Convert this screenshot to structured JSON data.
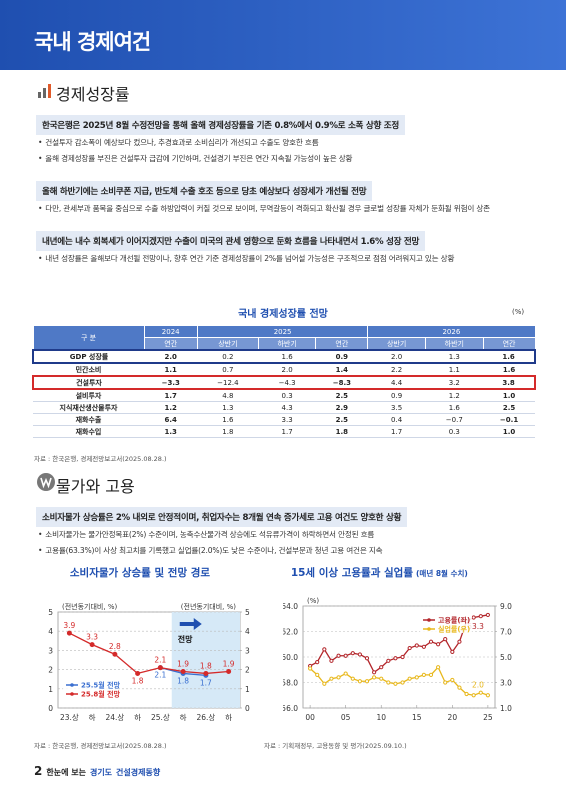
{
  "header": {
    "title": "국내 경제여건"
  },
  "sections": [
    {
      "title": "경제성장률",
      "blocks": [
        {
          "headline": "한국은행은 2025년 8월 수정전망을 통해 올해 경제성장률을 기존 0.8%에서 0.9%로 소폭 상향 조정",
          "bullets": [
            "건설투자 감소폭이 예상보다 컸으나, 추경효과로 소비심리가 개선되고 수출도 양호한 흐름",
            "올해 경제성장률 부진은 건설투자 급감에 기인하며, 건설경기 부진은 연간 지속될 가능성이 높은 상황"
          ]
        },
        {
          "headline": "올해 하반기에는 소비쿠폰 지급, 반도체 수출 호조 등으로 당초 예상보다 성장세가 개선될 전망",
          "bullets": [
            "다만, 관세부과 품목을 중심으로 수출 하방압력이 커질 것으로 보이며, 무역갈등이 격화되고 확산될 경우 글로벌 성장률 자체가 둔화될 위험이 상존"
          ]
        },
        {
          "headline": "내년에는 내수 회복세가 이어지겠지만 수출이 미국의 관세 영향으로 둔화 흐름을 나타내면서 1.6% 성장 전망",
          "bullets": [
            "내년 성장률은 올해보다 개선될 전망이나, 향후 연간 기준 경제성장률이 2%를 넘어설 가능성은 구조적으로 점점 어려워지고 있는 상황"
          ]
        }
      ]
    },
    {
      "title": "물가와 고용",
      "blocks": [
        {
          "headline": "소비자물가 상승률은 2% 내외로 안정적이며, 취업자수는 8개월 연속 증가세로 고용 여건도 양호한 상황",
          "bullets": [
            "소비자물가는 물가안정목표(2%) 수준이며, 농축수산물가격 상승에도 석유류가격이 하락하면서 안정된 흐름",
            "고용률(63.3%)이 사상 최고치를 기록했고 실업률(2.0%)도 낮은 수준이나, 건설부문과 청년 고용 여건은 지속"
          ]
        }
      ]
    }
  ],
  "table": {
    "title": "국내 경제성장률 전망",
    "unit": "(%)",
    "header": [
      "구 분",
      "2024",
      "2025",
      "2026"
    ],
    "subheader": [
      "연간",
      "상반기",
      "하반기",
      "연간",
      "상반기",
      "하반기",
      "연간"
    ],
    "rows": [
      [
        "GDP 성장률",
        "2.0",
        "0.2",
        "1.6",
        "0.9",
        "2.0",
        "1.3",
        "1.6"
      ],
      [
        "민간소비",
        "1.1",
        "0.7",
        "2.0",
        "1.4",
        "2.2",
        "1.1",
        "1.6"
      ],
      [
        "건설투자",
        "−3.3",
        "−12.4",
        "−4.3",
        "−8.3",
        "4.4",
        "3.2",
        "3.8"
      ],
      [
        "설비투자",
        "1.7",
        "4.8",
        "0.3",
        "2.5",
        "0.9",
        "1.2",
        "1.0"
      ],
      [
        "지식재산생산물투자",
        "1.2",
        "1.3",
        "4.3",
        "2.9",
        "3.5",
        "1.6",
        "2.5"
      ],
      [
        "재화수출",
        "6.4",
        "1.6",
        "3.3",
        "2.5",
        "0.4",
        "−0.7",
        "−0.1"
      ],
      [
        "재화수입",
        "1.3",
        "1.8",
        "1.7",
        "1.8",
        "1.7",
        "0.3",
        "1.0"
      ]
    ],
    "source": "자료 : 한국은행, 경제전망보고서(2025.08.28.)"
  },
  "charts": [
    {
      "type": "line",
      "title": "소비자물가 상승률 및 전망 경로",
      "y_label": "(전년동기대비, %)",
      "y2_label": "(전년동기대비, %)",
      "annotation": "전망",
      "categories": [
        "23.상",
        "하",
        "24.상",
        "하",
        "25.상",
        "하",
        "26.상",
        "하"
      ],
      "series": [
        {
          "name": "25.5월 전망",
          "color": "#3a6fd0",
          "values": [
            null,
            null,
            null,
            null,
            2.1,
            1.8,
            1.7,
            null
          ]
        },
        {
          "name": "25.8월 전망",
          "color": "#d42a2a",
          "values": [
            3.9,
            3.3,
            2.8,
            1.8,
            2.1,
            1.9,
            1.8,
            1.9
          ]
        }
      ],
      "ylim": [
        0,
        5
      ],
      "yticks": [
        0,
        1,
        2,
        3,
        4,
        5
      ],
      "y2lim": [
        0,
        5
      ],
      "y2ticks": [
        0,
        1,
        2,
        3,
        4,
        5
      ],
      "grid": true,
      "source": "자료 : 한국은행, 경제전망보고서(2025.08.28.)"
    },
    {
      "type": "line",
      "title": "15세 이상 고용률과 실업률",
      "subtitle": "(매년 8월 수치)",
      "y_label": "(%)",
      "x": [
        2000,
        2001,
        2002,
        2003,
        2004,
        2005,
        2006,
        2007,
        2008,
        2009,
        2010,
        2011,
        2012,
        2013,
        2014,
        2015,
        2016,
        2017,
        2018,
        2019,
        2020,
        2021,
        2022,
        2023,
        2024,
        2025
      ],
      "series": [
        {
          "name": "고용률(좌)",
          "color": "#b3262b",
          "values": [
            59.3,
            59.6,
            60.6,
            59.7,
            60.1,
            60.1,
            60.3,
            60.2,
            59.9,
            58.8,
            59.2,
            59.7,
            59.9,
            60.0,
            60.7,
            60.9,
            60.8,
            61.2,
            61.0,
            61.4,
            60.4,
            61.2,
            62.8,
            63.1,
            63.2,
            63.3
          ],
          "value_labels": [
            null,
            null,
            null,
            null,
            null,
            null,
            null,
            null,
            null,
            null,
            null,
            null,
            null,
            null,
            null,
            null,
            null,
            null,
            null,
            null,
            null,
            null,
            null,
            null,
            null,
            "63.3"
          ]
        },
        {
          "name": "실업률(우)",
          "color": "#e8b81c",
          "axis": "y2",
          "values": [
            4.1,
            3.6,
            2.9,
            3.3,
            3.4,
            3.7,
            3.3,
            3.1,
            3.1,
            3.4,
            3.3,
            3.0,
            2.9,
            3.0,
            3.3,
            3.4,
            3.6,
            3.6,
            4.2,
            3.0,
            3.2,
            2.6,
            2.1,
            2.0,
            2.2,
            2.0
          ],
          "value_labels": [
            null,
            null,
            null,
            null,
            null,
            null,
            null,
            null,
            null,
            null,
            null,
            null,
            null,
            null,
            null,
            null,
            null,
            null,
            null,
            null,
            null,
            null,
            null,
            null,
            null,
            "2.0"
          ]
        }
      ],
      "xlim": [
        1999,
        2026
      ],
      "xticks": [
        {
          "value": 2000,
          "label": "00"
        },
        {
          "value": 2005,
          "label": "05"
        },
        {
          "value": 2010,
          "label": "10"
        },
        {
          "value": 2015,
          "label": "15"
        },
        {
          "value": 2020,
          "label": "20"
        },
        {
          "value": 2025,
          "label": "25"
        }
      ],
      "ylim": [
        56,
        64
      ],
      "yticks": [
        {
          "value": 56,
          "label": "56.0"
        },
        {
          "value": 58,
          "label": "58.0"
        },
        {
          "value": 60,
          "label": "60.0"
        },
        {
          "value": 62,
          "label": "62.0"
        },
        {
          "value": 64,
          "label": "64.0"
        }
      ],
      "y2lim": [
        1,
        9
      ],
      "y2ticks": [
        {
          "value": 1,
          "label": "1.0"
        },
        {
          "value": 3,
          "label": "3.0"
        },
        {
          "value": 5,
          "label": "5.0"
        },
        {
          "value": 7,
          "label": "7.0"
        },
        {
          "value": 9,
          "label": "9.0"
        }
      ],
      "grid": true,
      "source": "자료 : 기획재정부, 고용동향 및 평가(2025.09.10.)"
    }
  ],
  "footer": {
    "page": "2",
    "lead": "한눈에 보는",
    "region": "경기도",
    "name": "건설경제동향"
  }
}
